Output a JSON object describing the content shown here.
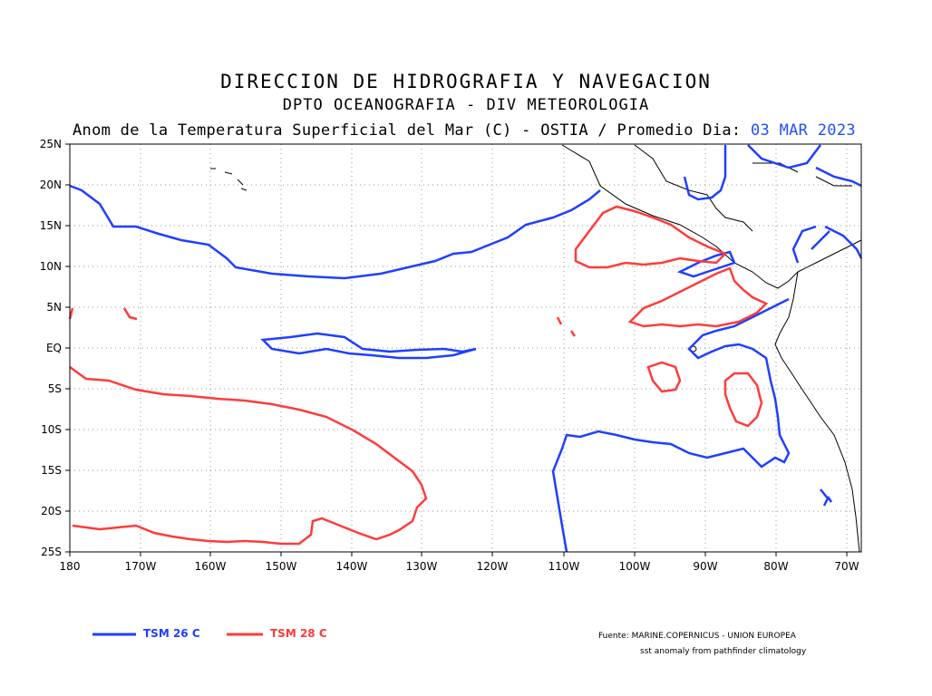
{
  "header": {
    "title": "DIRECCION DE HIDROGRAFIA Y NAVEGACION",
    "subtitle": "DPTO OCEANOGRAFIA - DIV METEOROLOGIA",
    "product": "Anom de la Temperatura Superficial del Mar (C) - OSTIA / Promedio Dia:",
    "date": "03 MAR 2023"
  },
  "map": {
    "lat_labels": [
      "25N",
      "20N",
      "15N",
      "10N",
      "5N",
      "EQ",
      "5S",
      "10S",
      "15S",
      "20S",
      "25S"
    ],
    "lon_labels": [
      "180",
      "170W",
      "160W",
      "150W",
      "140W",
      "130W",
      "120W",
      "110W",
      "100W",
      "90W",
      "80W",
      "70W"
    ],
    "lon_range": [
      -180,
      -68
    ],
    "lat_range": [
      -25,
      25
    ]
  },
  "legend": {
    "items": [
      {
        "label": "TSM 26 C",
        "color": "#1f3fff"
      },
      {
        "label": "TSM 28 C",
        "color": "#ff3b3b"
      }
    ]
  },
  "footer": {
    "source": "Fuente: MARINE.COPERNICUS - UNION EUROPEA",
    "note": "sst anomaly from pathfinder climatology"
  }
}
